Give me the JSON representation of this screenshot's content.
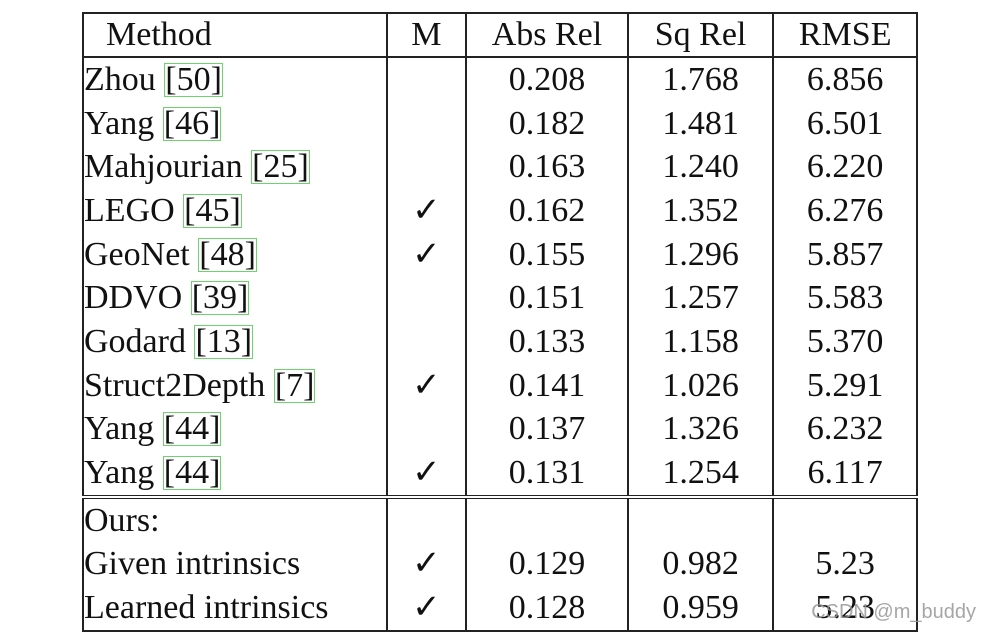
{
  "table": {
    "headers": [
      "Method",
      "M",
      "Abs Rel",
      "Sq Rel",
      "RMSE"
    ],
    "rows": [
      {
        "name": "Zhou",
        "cite": "[50]",
        "m": "",
        "abs_rel": "0.208",
        "sq_rel": "1.768",
        "rmse": "6.856"
      },
      {
        "name": "Yang",
        "cite": "[46]",
        "m": "",
        "abs_rel": "0.182",
        "sq_rel": "1.481",
        "rmse": "6.501"
      },
      {
        "name": "Mahjourian",
        "cite": "[25]",
        "m": "",
        "abs_rel": "0.163",
        "sq_rel": "1.240",
        "rmse": "6.220"
      },
      {
        "name": "LEGO",
        "cite": "[45]",
        "m": "✓",
        "abs_rel": "0.162",
        "sq_rel": "1.352",
        "rmse": "6.276"
      },
      {
        "name": "GeoNet",
        "cite": "[48]",
        "m": "✓",
        "abs_rel": "0.155",
        "sq_rel": "1.296",
        "rmse": "5.857"
      },
      {
        "name": "DDVO",
        "cite": "[39]",
        "m": "",
        "abs_rel": "0.151",
        "sq_rel": "1.257",
        "rmse": "5.583"
      },
      {
        "name": "Godard",
        "cite": "[13]",
        "m": "",
        "abs_rel": "0.133",
        "sq_rel": "1.158",
        "rmse": "5.370"
      },
      {
        "name": "Struct2Depth",
        "cite": "[7]",
        "m": "✓",
        "abs_rel": "0.141",
        "sq_rel": "1.026",
        "rmse": "5.291"
      },
      {
        "name": "Yang",
        "cite": "[44]",
        "m": "",
        "abs_rel": "0.137",
        "sq_rel": "1.326",
        "rmse": "6.232"
      },
      {
        "name": "Yang",
        "cite": "[44]",
        "m": "✓",
        "abs_rel": "0.131",
        "sq_rel": "1.254",
        "rmse": "6.117"
      }
    ],
    "ours_label": "Ours:",
    "ours_rows": [
      {
        "name": "Given intrinsics",
        "m": "✓",
        "abs_rel": "0.129",
        "sq_rel": "0.982",
        "rmse": "5.23"
      },
      {
        "name": "Learned intrinsics",
        "m": "✓",
        "abs_rel": "0.128",
        "sq_rel": "0.959",
        "rmse": "5.23"
      }
    ]
  },
  "watermark": "CSDN @m_buddy"
}
